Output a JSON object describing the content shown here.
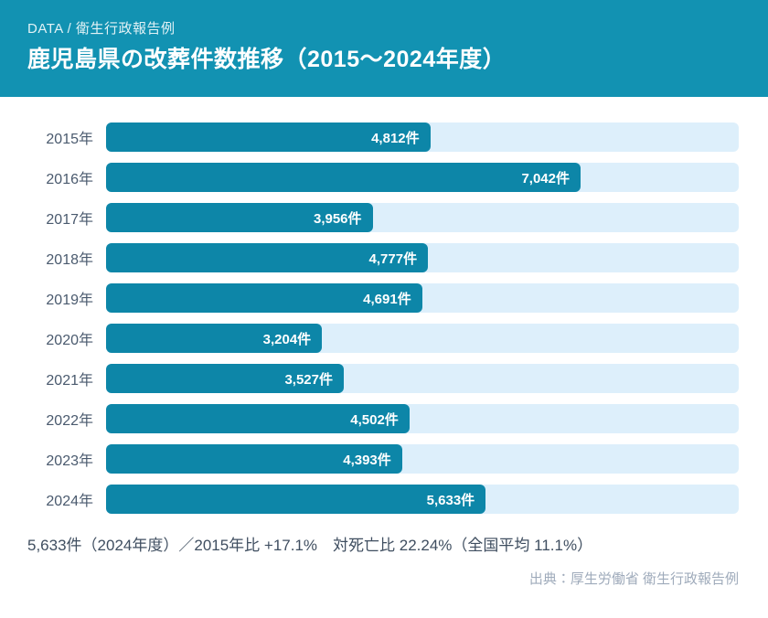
{
  "header": {
    "eyebrow": "DATA / 衛生行政報告例",
    "title": "鹿児島県の改葬件数推移（2015〜2024年度）",
    "bg_color": "#1292B2",
    "text_color": "#FFFFFF"
  },
  "chart_data": {
    "type": "bar",
    "orientation": "horizontal",
    "title": "鹿児島県の改葬件数推移（2015〜2024年度）",
    "categories": [
      "2015年",
      "2016年",
      "2017年",
      "2018年",
      "2019年",
      "2020年",
      "2021年",
      "2022年",
      "2023年",
      "2024年"
    ],
    "values": [
      4812,
      7042,
      3956,
      4777,
      4691,
      3204,
      3527,
      4502,
      4393,
      5633
    ],
    "value_labels": [
      "4,812件",
      "7,042件",
      "3,956件",
      "4,777件",
      "4,691件",
      "3,204件",
      "3,527件",
      "4,502件",
      "4,393件",
      "5,633件"
    ],
    "xlabel": "",
    "ylabel": "",
    "xlim": [
      0,
      9389
    ],
    "grid": false,
    "legend": false,
    "bar_color": "#0D86A8",
    "track_color": "#DDEFFB",
    "category_label_color": "#4A5A6E",
    "value_label_color": "#FFFFFF"
  },
  "summary": {
    "text": "5,633件（2024年度）／2015年比 +17.1%　対死亡比 22.24%（全国平均 11.1%）"
  },
  "source": {
    "text": "出典：厚生労働省 衛生行政報告例"
  }
}
